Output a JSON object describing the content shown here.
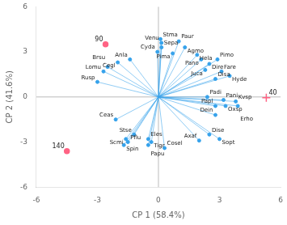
{
  "chart_data": {
    "type": "biplot",
    "xlabel": "CP 1 (58.4%)",
    "ylabel": "CP 2 (41.6%)",
    "xlim": [
      -6,
      6
    ],
    "ylim": [
      -6,
      6
    ],
    "xticks": [
      -6,
      -3,
      0,
      3,
      6
    ],
    "yticks": [
      -6,
      -3,
      0,
      3,
      6
    ],
    "grid": false,
    "points": [
      {
        "x": -2.6,
        "y": 3.5,
        "label": "90",
        "marker": "dot"
      },
      {
        "x": -4.5,
        "y": -3.6,
        "label": "140",
        "marker": "dot"
      },
      {
        "x": 5.3,
        "y": -0.05,
        "label": "40",
        "marker": "plus"
      }
    ],
    "vectors": [
      {
        "x": -0.05,
        "y": 3.0,
        "label": "Cyda"
      },
      {
        "x": -1.4,
        "y": 2.5,
        "label": "Anla"
      },
      {
        "x": -2.0,
        "y": 2.3,
        "label": "Cegl"
      },
      {
        "x": -2.5,
        "y": 2.0,
        "label": "Brsu"
      },
      {
        "x": -2.7,
        "y": 1.7,
        "label": "Lomu"
      },
      {
        "x": -3.0,
        "y": 1.0,
        "label": "Rusp"
      },
      {
        "x": -2.1,
        "y": -1.5,
        "label": "Ceas"
      },
      {
        "x": -1.2,
        "y": -2.5,
        "label": "Stse"
      },
      {
        "x": -1.6,
        "y": -2.8,
        "label": "Scmi"
      },
      {
        "x": -1.5,
        "y": -3.0,
        "label": "Pflu"
      },
      {
        "x": -1.7,
        "y": -3.2,
        "label": "Spin"
      },
      {
        "x": -0.5,
        "y": -2.8,
        "label": "Eles"
      },
      {
        "x": -0.35,
        "y": -3.0,
        "label": "Tigr"
      },
      {
        "x": -0.5,
        "y": -3.2,
        "label": "Papu"
      },
      {
        "x": 0.3,
        "y": -3.4,
        "label": "Cosel"
      },
      {
        "x": 0.1,
        "y": 3.85,
        "label": "Stma"
      },
      {
        "x": 0.15,
        "y": 3.6,
        "label": "Venu"
      },
      {
        "x": 0.15,
        "y": 3.3,
        "label": "Sepa"
      },
      {
        "x": 1.0,
        "y": 3.7,
        "label": "Paur"
      },
      {
        "x": 1.3,
        "y": 3.3,
        "label": "Agmo"
      },
      {
        "x": 0.7,
        "y": 2.9,
        "label": "Pima"
      },
      {
        "x": 1.9,
        "y": 2.8,
        "label": "Hela"
      },
      {
        "x": 2.1,
        "y": 2.5,
        "label": "Pano"
      },
      {
        "x": 2.9,
        "y": 2.5,
        "label": "Pimo"
      },
      {
        "x": 2.5,
        "y": 2.2,
        "label": "Dire"
      },
      {
        "x": 2.3,
        "y": 1.8,
        "label": "Juca"
      },
      {
        "x": 3.1,
        "y": 1.7,
        "label": "Fare"
      },
      {
        "x": 3.5,
        "y": 1.4,
        "label": "Hyde"
      },
      {
        "x": 2.8,
        "y": 1.2,
        "label": "Disa"
      },
      {
        "x": 2.4,
        "y": 0.0,
        "label": "Padi"
      },
      {
        "x": 3.2,
        "y": -0.2,
        "label": "Pani"
      },
      {
        "x": 3.8,
        "y": -0.3,
        "label": "Kvsp"
      },
      {
        "x": 2.8,
        "y": -0.6,
        "label": "Papl"
      },
      {
        "x": 3.3,
        "y": -0.6,
        "label": "Oxsp"
      },
      {
        "x": 3.9,
        "y": -0.6,
        "label": "Erho"
      },
      {
        "x": 2.8,
        "y": -1.2,
        "label": "Dein"
      },
      {
        "x": 2.5,
        "y": -2.5,
        "label": "Dise"
      },
      {
        "x": 3.0,
        "y": -2.8,
        "label": "Sopt"
      },
      {
        "x": 2.0,
        "y": -2.9,
        "label": "Axaf"
      }
    ]
  }
}
